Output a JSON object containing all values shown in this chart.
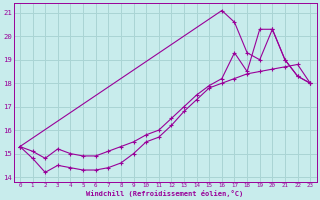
{
  "bg_color": "#c8ecec",
  "grid_color": "#aad4d4",
  "line_color": "#990099",
  "xlabel": "Windchill (Refroidissement éolien,°C)",
  "xlim": [
    -0.5,
    23.5
  ],
  "ylim": [
    13.8,
    21.4
  ],
  "yticks": [
    14,
    15,
    16,
    17,
    18,
    19,
    20,
    21
  ],
  "xticks": [
    0,
    1,
    2,
    3,
    4,
    5,
    6,
    7,
    8,
    9,
    10,
    11,
    12,
    13,
    14,
    15,
    16,
    17,
    18,
    19,
    20,
    21,
    22,
    23
  ],
  "line1_x": [
    0,
    1,
    2,
    3,
    4,
    5,
    6,
    7,
    8,
    9,
    10,
    11,
    12,
    13,
    14,
    15,
    16,
    17,
    18,
    19,
    20,
    21,
    22,
    23
  ],
  "line1_y": [
    15.3,
    14.8,
    14.2,
    14.5,
    14.4,
    14.3,
    14.3,
    14.4,
    14.6,
    15.0,
    15.5,
    15.7,
    16.2,
    16.8,
    17.3,
    17.8,
    18.0,
    18.2,
    18.4,
    18.5,
    18.6,
    18.7,
    18.8,
    18.0
  ],
  "line2_x": [
    0,
    16,
    17,
    18,
    19,
    20,
    21,
    22,
    23
  ],
  "line2_y": [
    15.3,
    21.1,
    20.6,
    19.3,
    19.0,
    20.3,
    19.0,
    18.3,
    18.0
  ],
  "line3_x": [
    0,
    1,
    2,
    3,
    4,
    5,
    6,
    7,
    8,
    9,
    10,
    11,
    12,
    13,
    14,
    15,
    16,
    17,
    18,
    19,
    20,
    21,
    22,
    23
  ],
  "line3_y": [
    15.3,
    15.1,
    14.8,
    15.2,
    15.0,
    14.9,
    14.9,
    15.1,
    15.3,
    15.5,
    15.8,
    16.0,
    16.5,
    17.0,
    17.5,
    17.9,
    18.2,
    19.3,
    18.5,
    20.3,
    20.3,
    19.0,
    18.3,
    18.0
  ]
}
